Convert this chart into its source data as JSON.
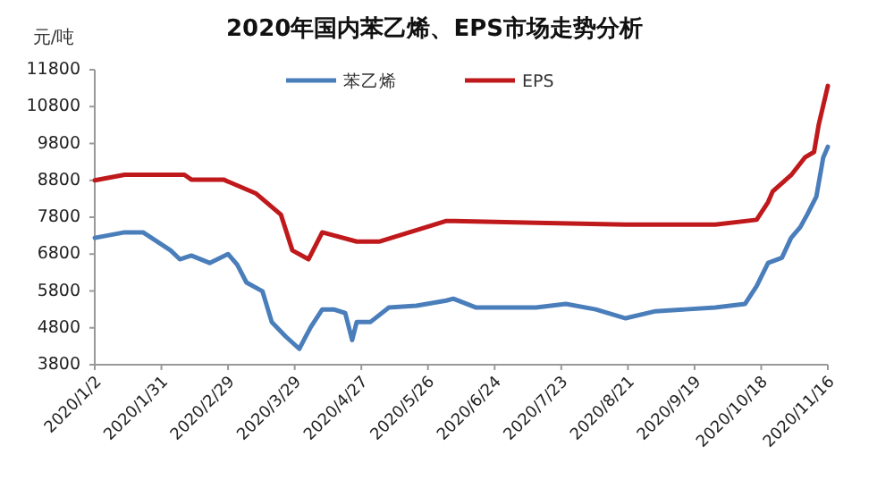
{
  "chart_data": {
    "type": "line",
    "title": "2020年国内苯乙烯、EPS市场走势分析",
    "ylabel": "元/吨",
    "xlim": [
      "2020-01-02",
      "2020-11-16"
    ],
    "xticks": [
      {
        "value": "2020-01-02",
        "label": "2020/1/2"
      },
      {
        "value": "2020-01-31",
        "label": "2020/1/31"
      },
      {
        "value": "2020-02-29",
        "label": "2020/2/29"
      },
      {
        "value": "2020-03-29",
        "label": "2020/3/29"
      },
      {
        "value": "2020-04-27",
        "label": "2020/4/27"
      },
      {
        "value": "2020-05-26",
        "label": "2020/5/26"
      },
      {
        "value": "2020-06-24",
        "label": "2020/6/24"
      },
      {
        "value": "2020-07-23",
        "label": "2020/7/23"
      },
      {
        "value": "2020-08-21",
        "label": "2020/8/21"
      },
      {
        "value": "2020-09-19",
        "label": "2020/9/19"
      },
      {
        "value": "2020-10-18",
        "label": "2020/10/18"
      },
      {
        "value": "2020-11-16",
        "label": "2020/11/16"
      }
    ],
    "ylim": [
      3800,
      11800
    ],
    "yticks": [
      3800,
      4800,
      5800,
      6800,
      7800,
      8800,
      9800,
      10800,
      11800
    ],
    "legend": "top",
    "grid": false,
    "marker": "none",
    "line_style": "solid",
    "series": [
      {
        "name": "苯乙烯",
        "color": "#4a7ebb",
        "x": [
          "2020-01-02",
          "2020-01-15",
          "2020-01-23",
          "2020-02-04",
          "2020-02-08",
          "2020-02-13",
          "2020-02-21",
          "2020-02-29",
          "2020-03-04",
          "2020-03-08",
          "2020-03-15",
          "2020-03-19",
          "2020-03-25",
          "2020-03-31",
          "2020-04-02",
          "2020-04-05",
          "2020-04-10",
          "2020-04-15",
          "2020-04-20",
          "2020-04-23",
          "2020-04-25",
          "2020-05-01",
          "2020-05-09",
          "2020-05-21",
          "2020-06-03",
          "2020-06-06",
          "2020-06-16",
          "2020-06-29",
          "2020-07-12",
          "2020-07-25",
          "2020-08-07",
          "2020-08-20",
          "2020-09-02",
          "2020-09-15",
          "2020-09-28",
          "2020-10-11",
          "2020-10-16",
          "2020-10-21",
          "2020-10-27",
          "2020-10-31",
          "2020-11-04",
          "2020-11-07",
          "2020-11-11",
          "2020-11-14",
          "2020-11-16"
        ],
        "values": [
          7240,
          7390,
          7390,
          6900,
          6660,
          6760,
          6560,
          6800,
          6510,
          6030,
          5790,
          4960,
          4570,
          4230,
          4470,
          4820,
          5300,
          5300,
          5200,
          4470,
          4960,
          4960,
          5350,
          5400,
          5540,
          5590,
          5350,
          5350,
          5350,
          5450,
          5300,
          5060,
          5250,
          5300,
          5350,
          5450,
          5930,
          6560,
          6700,
          7240,
          7530,
          7870,
          8360,
          9420,
          9710
        ]
      },
      {
        "name": "EPS",
        "color": "#c0191c",
        "x": [
          "2020-01-02",
          "2020-01-15",
          "2020-02-10",
          "2020-02-13",
          "2020-02-27",
          "2020-03-12",
          "2020-03-23",
          "2020-03-28",
          "2020-04-04",
          "2020-04-10",
          "2020-04-25",
          "2020-05-05",
          "2020-06-03",
          "2020-07-12",
          "2020-08-20",
          "2020-09-28",
          "2020-10-16",
          "2020-10-21",
          "2020-10-23",
          "2020-10-31",
          "2020-11-06",
          "2020-11-10",
          "2020-11-12",
          "2020-11-16"
        ],
        "values": [
          8800,
          8950,
          8950,
          8820,
          8820,
          8450,
          7870,
          6900,
          6660,
          7390,
          7140,
          7140,
          7700,
          7650,
          7600,
          7600,
          7730,
          8210,
          8500,
          8940,
          9420,
          9570,
          10300,
          11360
        ]
      }
    ]
  }
}
